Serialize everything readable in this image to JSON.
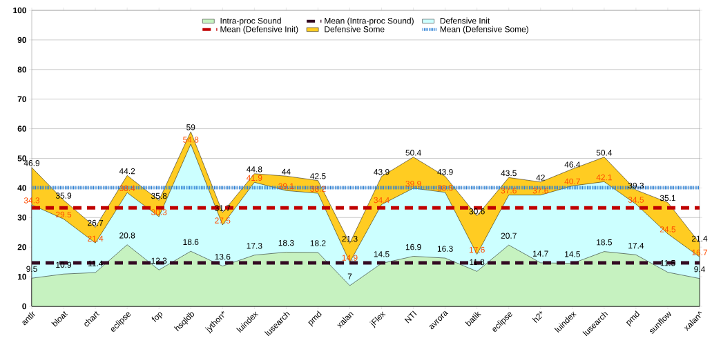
{
  "chart_data": {
    "type": "area",
    "categories": [
      "antlr",
      "bloat",
      "chart",
      "eclipse",
      "fop",
      "hsqldb",
      "jython*",
      "luindex",
      "lusearch",
      "pmd",
      "xalan",
      "jFlex",
      "NTI",
      "avrora",
      "batik",
      "eclipse",
      "h2*",
      "luindex",
      "lusearch",
      "pmd",
      "sunflow",
      "xalan^"
    ],
    "series": [
      {
        "name": "Intra-proc Sound",
        "color": "#c6f2c0",
        "values": [
          9.5,
          10.9,
          11.4,
          20.8,
          12.3,
          18.6,
          13.6,
          17.3,
          18.3,
          18.2,
          7,
          14.5,
          16.9,
          16.3,
          11.8,
          20.7,
          14.7,
          14.5,
          18.5,
          17.4,
          11.5,
          9.4
        ]
      },
      {
        "name": "Defensive Init",
        "color": "#ccffff",
        "values": [
          34.3,
          29.5,
          21.4,
          38.4,
          30.3,
          54.8,
          27.5,
          41.9,
          39.1,
          38.2,
          14.9,
          34.4,
          39.9,
          38.5,
          17.6,
          37.6,
          37.6,
          40.7,
          42.1,
          34.5,
          24.5,
          16.7
        ]
      },
      {
        "name": "Defensive Some",
        "color": "#ffcc22",
        "values": [
          46.9,
          35.9,
          26.7,
          44.2,
          35.8,
          59,
          31.7,
          44.8,
          44,
          42.5,
          21.3,
          43.9,
          50.4,
          43.9,
          30.6,
          43.5,
          42,
          46.4,
          50.4,
          39.3,
          35.1,
          21.4
        ]
      }
    ],
    "ref_lines": [
      {
        "axis": "y",
        "value": 14.7,
        "label": "Mean (Intra-proc Sound)",
        "color": "#330a22",
        "line_style": "dashed"
      },
      {
        "axis": "y",
        "value": 33.3,
        "label": "Mean (Defensive Init)",
        "color": "#c00000",
        "line_style": "dashed"
      },
      {
        "axis": "y",
        "value": 40.1,
        "label": "Mean (Defensive Some)",
        "color": "#2a7fd4",
        "line_style": "dotted"
      }
    ],
    "data_labels": true,
    "ylim": [
      0,
      100
    ],
    "yticks": [
      0,
      10,
      20,
      30,
      40,
      50,
      60,
      70,
      80,
      90,
      100
    ],
    "grid": "y",
    "legend": "top"
  }
}
